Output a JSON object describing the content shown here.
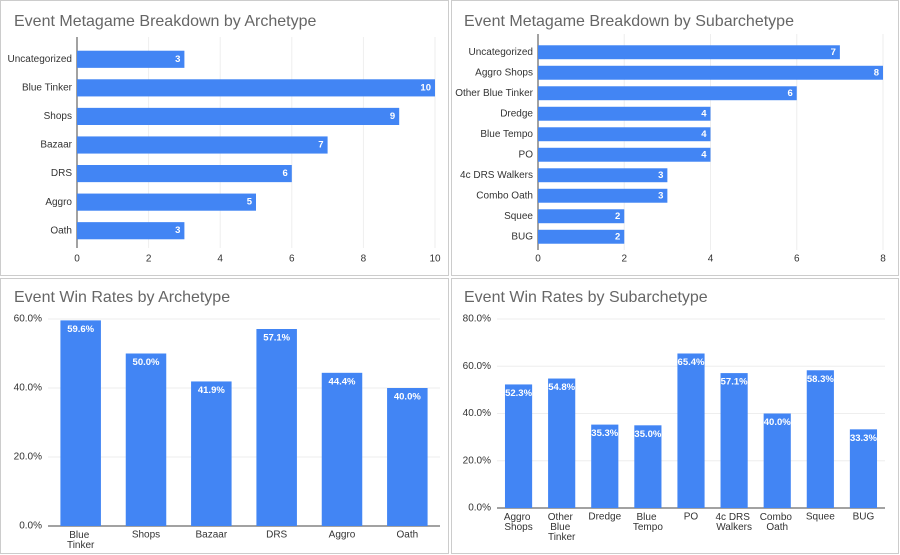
{
  "chart_data": [
    {
      "type": "bar",
      "orientation": "horizontal",
      "title": "Event Metagame Breakdown by Archetype",
      "categories": [
        "Uncategorized",
        "Blue Tinker",
        "Shops",
        "Bazaar",
        "DRS",
        "Aggro",
        "Oath"
      ],
      "values": [
        3,
        10,
        9,
        7,
        6,
        5,
        3
      ],
      "color": "#4285f4",
      "xlim": [
        0,
        10
      ],
      "xticks": [
        0,
        2,
        4,
        6,
        8,
        10
      ],
      "grid": true
    },
    {
      "type": "bar",
      "orientation": "horizontal",
      "title": "Event Metagame Breakdown by Subarchetype",
      "categories": [
        "Uncategorized",
        "Aggro Shops",
        "Other Blue Tinker",
        "Dredge",
        "Blue Tempo",
        "PO",
        "4c DRS Walkers",
        "Combo Oath",
        "Squee",
        "BUG"
      ],
      "values": [
        7,
        8,
        6,
        4,
        4,
        4,
        3,
        3,
        2,
        2
      ],
      "color": "#4285f4",
      "xlim": [
        0,
        8
      ],
      "xticks": [
        0,
        2,
        4,
        6,
        8
      ],
      "grid": true
    },
    {
      "type": "bar",
      "orientation": "vertical",
      "title": "Event Win Rates by Archetype",
      "categories": [
        "Blue Tinker",
        "Shops",
        "Bazaar",
        "DRS",
        "Aggro",
        "Oath"
      ],
      "values": [
        59.6,
        50.0,
        41.9,
        57.1,
        44.4,
        40.0
      ],
      "value_labels": [
        "59.6%",
        "50.0%",
        "41.9%",
        "57.1%",
        "44.4%",
        "40.0%"
      ],
      "color": "#4285f4",
      "ylim": [
        0,
        60
      ],
      "yticks": [
        {
          "value": 0,
          "label": "0.0%"
        },
        {
          "value": 20,
          "label": "20.0%"
        },
        {
          "value": 40,
          "label": "40.0%"
        },
        {
          "value": 60,
          "label": "60.0%"
        }
      ],
      "grid": true
    },
    {
      "type": "bar",
      "orientation": "vertical",
      "title": "Event Win Rates by Subarchetype",
      "categories": [
        "Aggro Shops",
        "Other Blue Tinker",
        "Dredge",
        "Blue Tempo",
        "PO",
        "4c DRS Walkers",
        "Combo Oath",
        "Squee",
        "BUG"
      ],
      "values": [
        52.3,
        54.8,
        35.3,
        35.0,
        65.4,
        57.1,
        40.0,
        58.3,
        33.3
      ],
      "value_labels": [
        "52.3%",
        "54.8%",
        "35.3%",
        "35.0%",
        "65.4%",
        "57.1%",
        "40.0%",
        "58.3%",
        "33.3%"
      ],
      "color": "#4285f4",
      "ylim": [
        0,
        80
      ],
      "yticks": [
        {
          "value": 0,
          "label": "0.0%"
        },
        {
          "value": 20,
          "label": "20.0%"
        },
        {
          "value": 40,
          "label": "40.0%"
        },
        {
          "value": 60,
          "label": "60.0%"
        },
        {
          "value": 80,
          "label": "80.0%"
        }
      ],
      "grid": true
    }
  ]
}
